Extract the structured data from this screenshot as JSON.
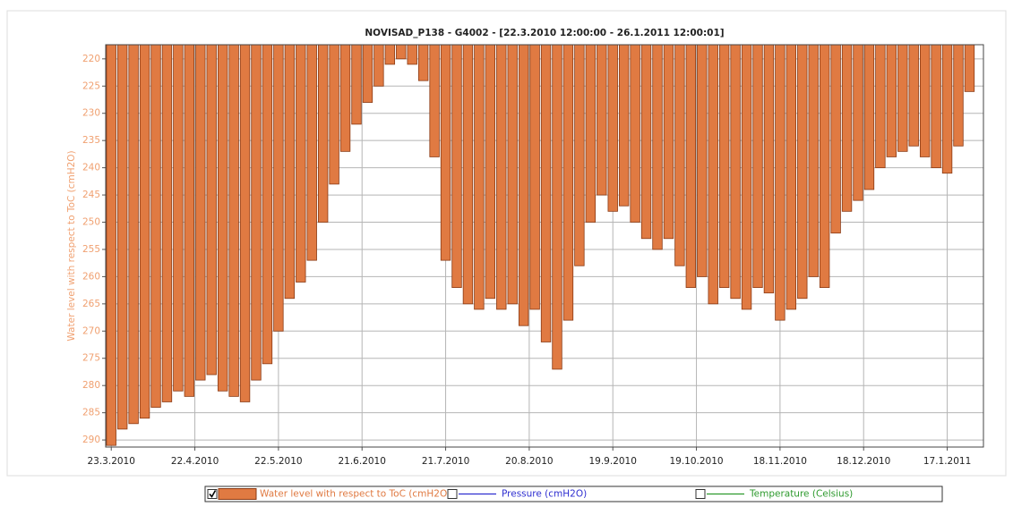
{
  "chart_data": {
    "type": "bar",
    "title": "NOVISAD_P138 - G4002 -  [22.3.2010 12:00:00  -  26.1.2011 12:00:01]",
    "y_label": "Water level with respect to ToC (cmH2O)",
    "y_inverted": true,
    "ylim": [
      217.4,
      291.3
    ],
    "yticks": [
      220,
      225,
      230,
      235,
      240,
      245,
      250,
      255,
      260,
      265,
      270,
      275,
      280,
      285,
      290
    ],
    "xlim": [
      "21.3.2010",
      "30.1.2011"
    ],
    "xticks": [
      "23.3.2010",
      "22.4.2010",
      "22.5.2010",
      "21.6.2010",
      "21.7.2010",
      "20.8.2010",
      "19.9.2010",
      "19.10.2010",
      "18.11.2010",
      "18.12.2010",
      "17.1.2011"
    ],
    "grid": true,
    "x": [
      "23.3.2010",
      "27.3.2010",
      "31.3.2010",
      "4.4.2010",
      "8.4.2010",
      "12.4.2010",
      "16.4.2010",
      "20.4.2010",
      "24.4.2010",
      "28.4.2010",
      "2.5.2010",
      "6.5.2010",
      "10.5.2010",
      "14.5.2010",
      "18.5.2010",
      "22.5.2010",
      "26.5.2010",
      "30.5.2010",
      "3.6.2010",
      "7.6.2010",
      "11.6.2010",
      "15.6.2010",
      "19.6.2010",
      "23.6.2010",
      "27.6.2010",
      "1.7.2010",
      "5.7.2010",
      "9.7.2010",
      "13.7.2010",
      "17.7.2010",
      "21.7.2010",
      "25.7.2010",
      "29.7.2010",
      "2.8.2010",
      "6.8.2010",
      "10.8.2010",
      "14.8.2010",
      "18.8.2010",
      "22.8.2010",
      "26.8.2010",
      "30.8.2010",
      "3.9.2010",
      "7.9.2010",
      "11.9.2010",
      "15.9.2010",
      "19.9.2010",
      "23.9.2010",
      "27.9.2010",
      "1.10.2010",
      "5.10.2010",
      "9.10.2010",
      "13.10.2010",
      "17.10.2010",
      "21.10.2010",
      "25.10.2010",
      "29.10.2010",
      "2.11.2010",
      "6.11.2010",
      "10.11.2010",
      "14.11.2010",
      "18.11.2010",
      "22.11.2010",
      "26.11.2010",
      "30.11.2010",
      "4.12.2010",
      "8.12.2010",
      "12.12.2010",
      "16.12.2010",
      "20.12.2010",
      "24.12.2010",
      "28.12.2010",
      "1.1.2011",
      "5.1.2011",
      "9.1.2011",
      "13.1.2011",
      "17.1.2011",
      "21.1.2011",
      "25.1.2011"
    ],
    "series": [
      {
        "name": "Water level with respect to ToC (cmH2O)",
        "color": "#e07a42",
        "values": [
          291,
          288,
          287,
          286,
          284,
          283,
          281,
          282,
          279,
          278,
          281,
          282,
          283,
          279,
          276,
          270,
          264,
          261,
          257,
          250,
          243,
          237,
          232,
          228,
          225,
          221,
          220,
          221,
          224,
          238,
          257,
          262,
          265,
          266,
          264,
          266,
          265,
          269,
          266,
          272,
          277,
          268,
          258,
          250,
          245,
          248,
          247,
          250,
          253,
          255,
          253,
          258,
          262,
          260,
          265,
          262,
          264,
          266,
          262,
          263,
          268,
          266,
          264,
          260,
          262,
          252,
          248,
          246,
          244,
          240,
          238,
          237,
          236,
          238,
          240,
          241,
          236,
          226
        ]
      }
    ],
    "legend_entries": [
      {
        "name": "Water level with respect to ToC (cmH2O)",
        "color": "#e07a42",
        "checked": true
      },
      {
        "name": "Pressure (cmH2O)",
        "color": "#2f2fd0",
        "checked": false
      },
      {
        "name": "Temperature (Celsius)",
        "color": "#2e9a2e",
        "checked": false
      }
    ]
  }
}
